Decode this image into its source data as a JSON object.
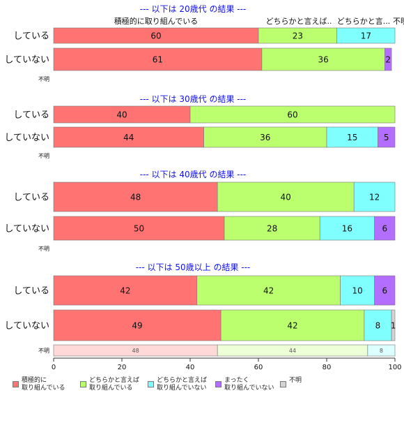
{
  "chart_data": {
    "type": "bar",
    "orientation": "horizontal",
    "stacked": true,
    "xlim": [
      0,
      100
    ],
    "xticks": [
      0,
      20,
      40,
      60,
      80,
      100
    ],
    "categories": [
      "積極的に取り組んでいる",
      "どちらかと言えば取り組んでいる",
      "どちらかと言えば取り組んでいない",
      "まったく取り組んでいない",
      "不明"
    ],
    "colors": [
      "#ff7373",
      "#bbff6e",
      "#80ffff",
      "#b46eff",
      "#d3d3d3"
    ],
    "top_labels": [
      "積極的に取り組んでいる",
      "どちらかと言えば..",
      "どちらかと言...",
      "不明"
    ],
    "panels": [
      {
        "title": "--- 以下は 20歳代 の結果 ---",
        "rows": [
          {
            "label": "している",
            "values": [
              60,
              23,
              17,
              0,
              0
            ]
          },
          {
            "label": "していない",
            "values": [
              61,
              36,
              0,
              2,
              0
            ]
          },
          {
            "label": "不明",
            "values": [],
            "faded": false
          }
        ]
      },
      {
        "title": "--- 以下は 30歳代 の結果 ---",
        "rows": [
          {
            "label": "している",
            "values": [
              40,
              60,
              0,
              0,
              0
            ]
          },
          {
            "label": "していない",
            "values": [
              44,
              36,
              15,
              5,
              0
            ]
          },
          {
            "label": "不明",
            "values": [],
            "faded": false
          }
        ]
      },
      {
        "title": "--- 以下は 40歳代 の結果 ---",
        "rows": [
          {
            "label": "している",
            "values": [
              48,
              40,
              12,
              0,
              0
            ]
          },
          {
            "label": "していない",
            "values": [
              50,
              28,
              16,
              6,
              0
            ]
          },
          {
            "label": "不明",
            "values": [],
            "faded": false
          }
        ]
      },
      {
        "title": "--- 以下は 50歳以上 の結果 ---",
        "rows": [
          {
            "label": "している",
            "values": [
              42,
              42,
              10,
              6,
              0
            ]
          },
          {
            "label": "していない",
            "values": [
              49,
              42,
              8,
              0,
              1
            ]
          },
          {
            "label": "不明",
            "values": [
              48,
              44,
              8,
              0,
              0
            ],
            "faded": true
          }
        ]
      }
    ],
    "legend": [
      {
        "line1": "積極的に",
        "line2": "取り組んでいる",
        "color": "#ff7373"
      },
      {
        "line1": "どちらかと言えば",
        "line2": "取り組んでいる",
        "color": "#bbff6e"
      },
      {
        "line1": "どちらかと言えば",
        "line2": "取り組んでいない",
        "color": "#80ffff"
      },
      {
        "line1": "まったく",
        "line2": "取り組んでいない",
        "color": "#b46eff"
      },
      {
        "line1": "不明",
        "line2": "",
        "color": "#d3d3d3"
      }
    ]
  }
}
